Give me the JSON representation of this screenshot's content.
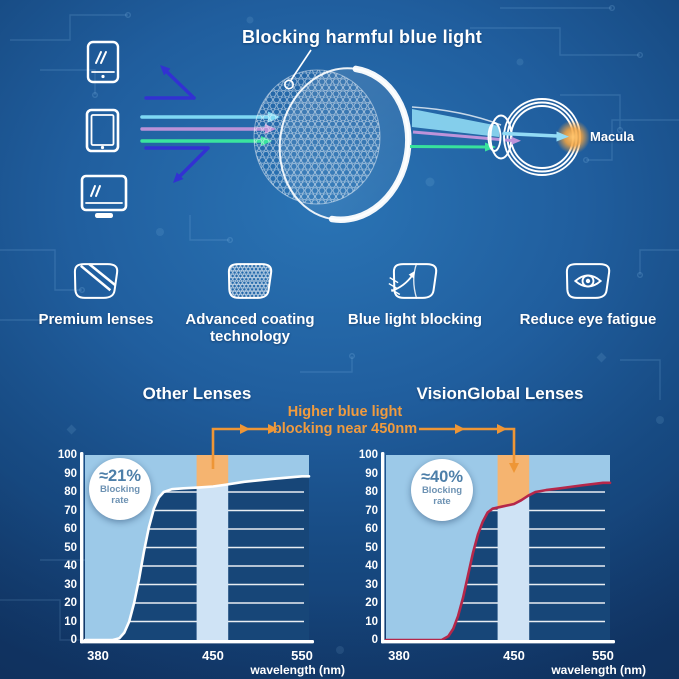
{
  "page": {
    "background_color": "#205e9e",
    "accent_orange": "#ee9636"
  },
  "hero": {
    "title": "Blocking harmful blue light",
    "macula_label": "Macula",
    "device_icons": [
      "smartphone",
      "tablet",
      "monitor"
    ],
    "beam_colors": {
      "cyan": "#7ed8f4",
      "purple": "#bb92d8",
      "green": "#3ae49e",
      "reflected_indigo": "#3231d2"
    }
  },
  "features": [
    {
      "label": "Premium lenses"
    },
    {
      "label": "Advanced coating technology"
    },
    {
      "label": "Blue light blocking"
    },
    {
      "label": "Reduce eye fatigue"
    }
  ],
  "comparison": {
    "annotation": {
      "line1": "Higher blue light",
      "line2": "blocking near 450nm",
      "color": "#f09b3e"
    }
  },
  "chart_data": [
    {
      "type": "area",
      "title": "Other Lenses",
      "badge": {
        "value": "≈21%",
        "label_line1": "Blocking",
        "label_line2": "rate"
      },
      "xlabel": "wavelength (nm)",
      "x_ticks": [
        380,
        450,
        550
      ],
      "y_ticks": [
        0,
        10,
        20,
        30,
        40,
        50,
        60,
        70,
        80,
        90,
        100
      ],
      "ylim": [
        0,
        100
      ],
      "grid": true,
      "highlight_band_nm": [
        440,
        467
      ],
      "curve_color": "#ffffff",
      "fill_above_color": "#9cc9e8",
      "band_color": "#cfe3f5",
      "band_blocked_color": "#f5b470",
      "plot_bg_color": "#174678",
      "curve_points_nm_pct": [
        [
          380,
          0
        ],
        [
          389,
          0
        ],
        [
          393,
          1
        ],
        [
          396,
          4
        ],
        [
          399,
          10
        ],
        [
          402,
          20
        ],
        [
          405,
          33
        ],
        [
          408,
          48
        ],
        [
          411,
          61
        ],
        [
          414,
          71
        ],
        [
          417,
          77
        ],
        [
          420,
          80
        ],
        [
          425,
          81.5
        ],
        [
          432,
          82
        ],
        [
          442,
          82.5
        ],
        [
          450,
          83
        ],
        [
          465,
          84
        ],
        [
          485,
          85.5
        ],
        [
          515,
          87
        ],
        [
          550,
          88.5
        ]
      ]
    },
    {
      "type": "area",
      "title": "VisionGlobal Lenses",
      "badge": {
        "value": "≈40%",
        "label_line1": "Blocking",
        "label_line2": "rate"
      },
      "xlabel": "wavelength (nm)",
      "x_ticks": [
        380,
        450,
        550
      ],
      "y_ticks": [
        0,
        10,
        20,
        30,
        40,
        50,
        60,
        70,
        80,
        90,
        100
      ],
      "ylim": [
        0,
        100
      ],
      "grid": true,
      "highlight_band_nm": [
        440,
        467
      ],
      "curve_color": "#b5274a",
      "fill_above_color": "#9cc9e8",
      "band_color": "#cfe3f5",
      "band_blocked_color": "#f5b470",
      "plot_bg_color": "#174678",
      "curve_points_nm_pct": [
        [
          380,
          0
        ],
        [
          406,
          0
        ],
        [
          410,
          2
        ],
        [
          413,
          6
        ],
        [
          416,
          13
        ],
        [
          419,
          23
        ],
        [
          422,
          35
        ],
        [
          425,
          47
        ],
        [
          428,
          57
        ],
        [
          431,
          64
        ],
        [
          434,
          69
        ],
        [
          437,
          71
        ],
        [
          442,
          72
        ],
        [
          450,
          73.5
        ],
        [
          458,
          75.5
        ],
        [
          466,
          78
        ],
        [
          474,
          80
        ],
        [
          486,
          81
        ],
        [
          502,
          82
        ],
        [
          525,
          83.5
        ],
        [
          550,
          85
        ]
      ]
    }
  ]
}
